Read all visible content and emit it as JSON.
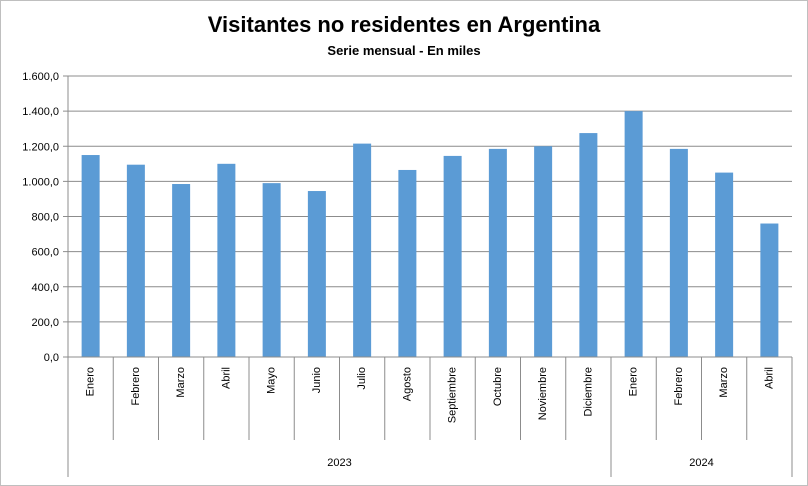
{
  "chart_data": {
    "type": "bar",
    "title": "Visitantes no residentes en Argentina",
    "subtitle": "Serie mensual - En miles",
    "xlabel": "",
    "ylabel": "",
    "ylim": [
      0,
      1600
    ],
    "yticks": [
      "0,0",
      "200,0",
      "400,0",
      "600,0",
      "800,0",
      "1.000,0",
      "1.200,0",
      "1.400,0",
      "1.600,0"
    ],
    "ytick_values": [
      0,
      200,
      400,
      600,
      800,
      1000,
      1200,
      1400,
      1600
    ],
    "grid": true,
    "categories": [
      "Enero",
      "Febrero",
      "Marzo",
      "Abril",
      "Mayo",
      "Junio",
      "Julio",
      "Agosto",
      "Septiembre",
      "Octubre",
      "Noviembre",
      "Diciembre",
      "Enero",
      "Febrero",
      "Marzo",
      "Abril"
    ],
    "values": [
      1150,
      1095,
      985,
      1100,
      990,
      945,
      1215,
      1065,
      1145,
      1185,
      1200,
      1275,
      1400,
      1185,
      1050,
      760
    ],
    "groups": [
      {
        "label": "2023",
        "count": 12
      },
      {
        "label": "2024",
        "count": 4
      }
    ],
    "bar_color": "#5b9bd5"
  }
}
